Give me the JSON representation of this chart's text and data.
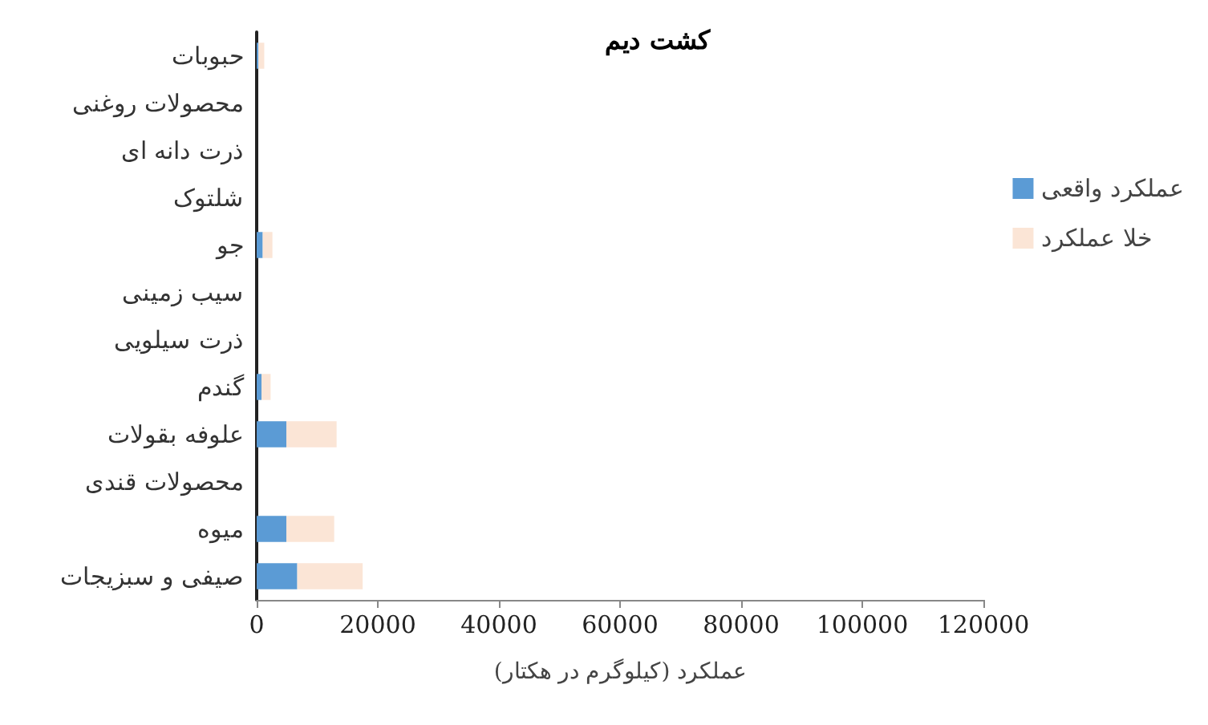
{
  "chart_data": {
    "type": "bar",
    "orientation": "horizontal",
    "stacked": true,
    "title": "کشت دیم",
    "xlabel": "عملکرد (کیلوگرم در هکتار)",
    "categories": [
      "حبوبات",
      "محصولات روغنی",
      "ذرت دانه ای",
      "شلتوک",
      "جو",
      "سیب زمینی",
      "ذرت سیلویی",
      "گندم",
      "علوفه بقولات",
      "محصولات قندی",
      "میوه",
      "صیفی و سبزیجات"
    ],
    "series": [
      {
        "name": "عملکرد واقعی",
        "color": "#5b9bd5",
        "values": [
          300,
          null,
          null,
          null,
          1000,
          null,
          null,
          800,
          4900,
          null,
          4900,
          6700
        ]
      },
      {
        "name": "خلا عملکرد",
        "color": "#fbe5d6",
        "values": [
          950,
          null,
          null,
          null,
          1600,
          null,
          null,
          1500,
          8300,
          null,
          7900,
          10800
        ]
      }
    ],
    "xlim": [
      0,
      120000
    ],
    "xticks": [
      0,
      20000,
      40000,
      60000,
      80000,
      100000,
      120000
    ],
    "grid": false,
    "legend": "right"
  }
}
